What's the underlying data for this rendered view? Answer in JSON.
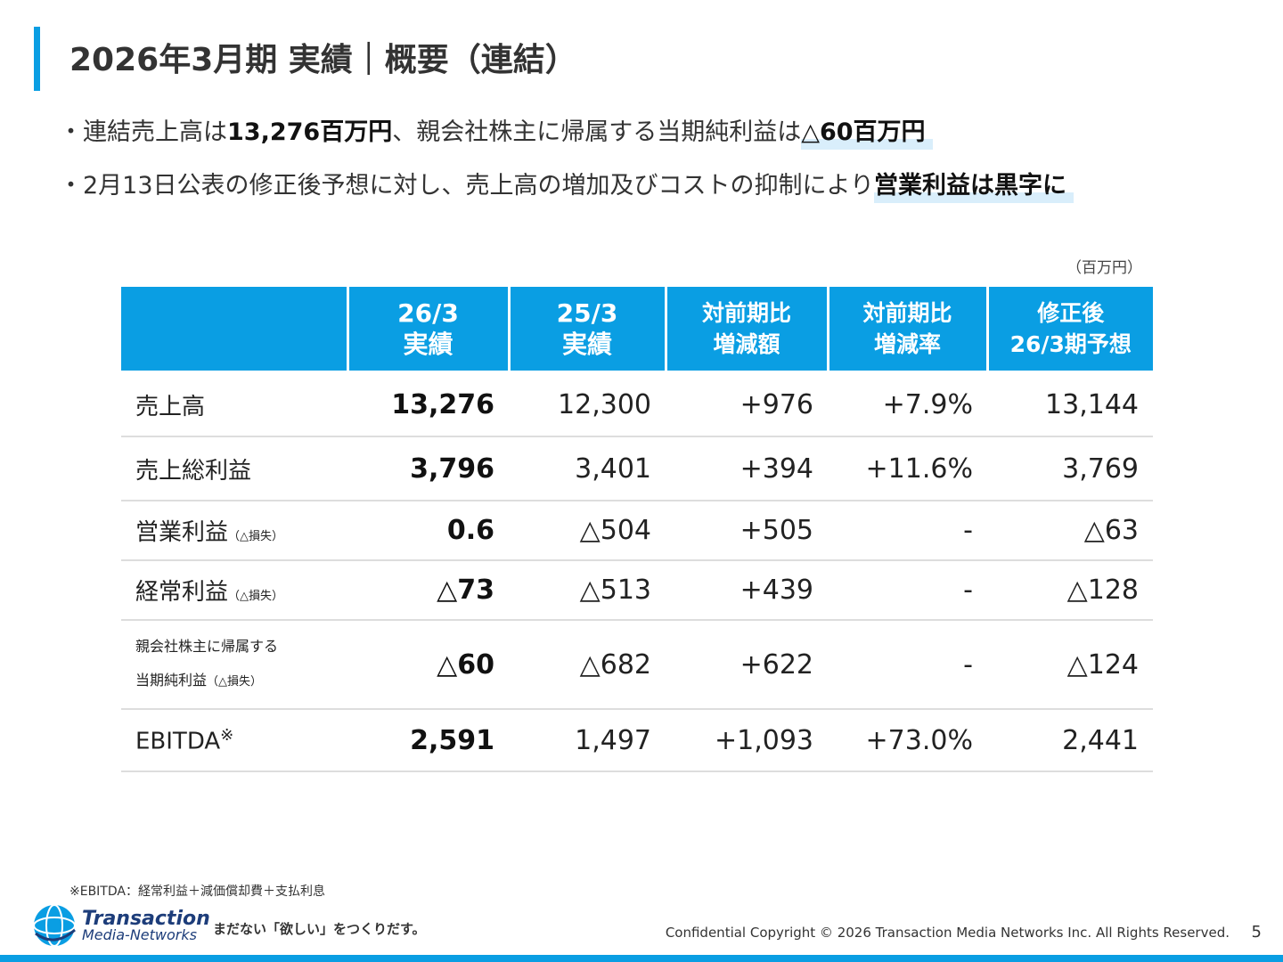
{
  "header": {
    "title": "2026年3月期 実績｜概要（連結）"
  },
  "bullets": {
    "b1": {
      "p1": "・連結売上高は",
      "p2": "13,276百万円",
      "p3": "、親会社株主に帰属する当期純利益は",
      "p4": "△60百万円"
    },
    "b2": {
      "p1": "・2月13日公表の修正後予想に対し、売上高の増加及びコストの抑制により",
      "p2": "営業利益は黒字に"
    }
  },
  "unit_label": "（百万円）",
  "table": {
    "headers": [
      {
        "l1": "",
        "l2": ""
      },
      {
        "l1": "26/3",
        "l2": "実績"
      },
      {
        "l1": "25/3",
        "l2": "実績"
      },
      {
        "l1": "対前期比",
        "l2": "増減額"
      },
      {
        "l1": "対前期比",
        "l2": "増減率"
      },
      {
        "l1": "修正後",
        "l2": "26/3期予想"
      }
    ],
    "rows": [
      {
        "label": "売上高",
        "note": "",
        "values": [
          "13,276",
          "12,300",
          "+976",
          "+7.9%",
          "13,144"
        ]
      },
      {
        "label": "売上総利益",
        "note": "",
        "values": [
          "3,796",
          "3,401",
          "+394",
          "+11.6%",
          "3,769"
        ]
      },
      {
        "label": "営業利益",
        "note": "（△損失）",
        "values": [
          "0.6",
          "△504",
          "+505",
          "-",
          "△63"
        ]
      },
      {
        "label": "経常利益",
        "note": "（△損失）",
        "values": [
          "△73",
          "△513",
          "+439",
          "-",
          "△128"
        ]
      },
      {
        "label": "親会社株主に帰属する",
        "label2": "当期純利益",
        "note": "（△損失）",
        "values": [
          "△60",
          "△682",
          "+622",
          "-",
          "△124"
        ]
      },
      {
        "label": "EBITDA",
        "note": "※",
        "values": [
          "2,591",
          "1,497",
          "+1,093",
          "+73.0%",
          "2,441"
        ]
      }
    ]
  },
  "footnote": "※EBITDA：経常利益＋減価償却費＋支払利息",
  "footer": {
    "logo_line1": "Transaction",
    "logo_line2": "Media-Networks",
    "tagline": "まだない「欲しい」をつくりだす。",
    "copyright": "Confidential  Copyright © 2026 Transaction Media Networks Inc. All Rights Reserved.",
    "page_number": "5"
  },
  "colors": {
    "accent": "#0a9ee3",
    "highlight": "#d9eefb",
    "logo": "#1d3d7a"
  }
}
